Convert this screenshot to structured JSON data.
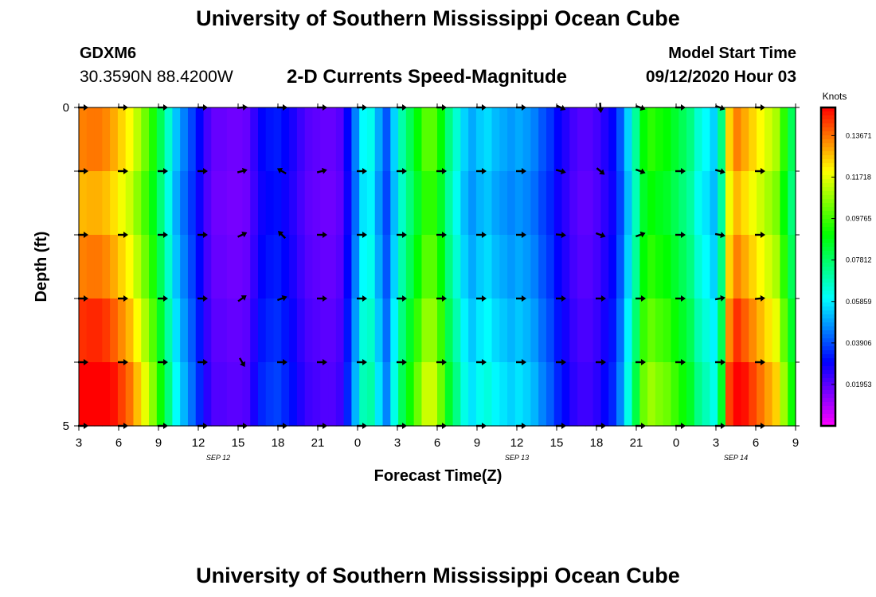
{
  "header": {
    "title": "University of Southern Mississippi Ocean Cube",
    "station_id": "GDXM6",
    "coordinates": "30.3590N 88.4200W",
    "subtitle": "2-D Currents Speed-Magnitude",
    "start_label": "Model Start Time",
    "start_value": "09/12/2020 Hour 03"
  },
  "footer": {
    "title": "University of Southern Mississippi Ocean Cube"
  },
  "chart_data": {
    "type": "heatmap",
    "title": "2-D Currents Speed-Magnitude",
    "xlabel": "Forecast Time(Z)",
    "ylabel": "Depth (ft)",
    "x_tick_labels": [
      "3",
      "6",
      "9",
      "12",
      "15",
      "18",
      "21",
      "0",
      "3",
      "6",
      "9",
      "12",
      "15",
      "18",
      "21",
      "0",
      "3",
      "6",
      "9"
    ],
    "date_labels": [
      {
        "text": "SEP 12",
        "tick_index": 3.5
      },
      {
        "text": "SEP 13",
        "tick_index": 11
      },
      {
        "text": "SEP 14",
        "tick_index": 16.5
      }
    ],
    "y_tick_labels": [
      "0",
      "5"
    ],
    "ylim": [
      0,
      5
    ],
    "colorbar": {
      "title": "Knots",
      "tick_labels": [
        "0.13671",
        "0.11718",
        "0.09765",
        "0.07812",
        "0.05859",
        "0.03906",
        "0.01953"
      ],
      "tick_values": [
        0.13671,
        0.11718,
        0.09765,
        0.07812,
        0.05859,
        0.03906,
        0.01953
      ],
      "range": [
        0.0,
        0.15
      ]
    },
    "depth_rows": 5,
    "profile": [
      0.135,
      0.136,
      0.136,
      0.134,
      0.13,
      0.125,
      0.12,
      0.112,
      0.103,
      0.093,
      0.08,
      0.066,
      0.053,
      0.045,
      0.038,
      0.03,
      0.022,
      0.018,
      0.018,
      0.017,
      0.017,
      0.018,
      0.024,
      0.03,
      0.032,
      0.033,
      0.03,
      0.027,
      0.023,
      0.02,
      0.019,
      0.018,
      0.018,
      0.02,
      0.03,
      0.045,
      0.06,
      0.062,
      0.05,
      0.04,
      0.055,
      0.07,
      0.08,
      0.09,
      0.1,
      0.1,
      0.09,
      0.075,
      0.065,
      0.055,
      0.05,
      0.054,
      0.056,
      0.052,
      0.05,
      0.048,
      0.05,
      0.048,
      0.045,
      0.04,
      0.036,
      0.03,
      0.026,
      0.022,
      0.02,
      0.02,
      0.022,
      0.026,
      0.03,
      0.04,
      0.055,
      0.072,
      0.09,
      0.095,
      0.092,
      0.09,
      0.085,
      0.08,
      0.075,
      0.065,
      0.06,
      0.055,
      0.075,
      0.125,
      0.135,
      0.13,
      0.125,
      0.12,
      0.115,
      0.11,
      0.095,
      0.08
    ],
    "row_scale": [
      1.0,
      0.95,
      1.0,
      1.07,
      1.14
    ],
    "arrow_rows_depth": [
      0,
      1,
      2,
      3,
      4,
      5
    ],
    "arrow_columns_tick_index": [
      0,
      1,
      2,
      3,
      4,
      5,
      6,
      7,
      8,
      9,
      10,
      11,
      12,
      13,
      14,
      15,
      16,
      17
    ],
    "arrow_directions_deg": [
      [
        0,
        0,
        0,
        0,
        -5,
        0,
        0,
        0,
        0,
        0,
        0,
        0,
        25,
        85,
        20,
        0,
        20,
        0
      ],
      [
        0,
        0,
        0,
        0,
        -15,
        -150,
        -15,
        0,
        0,
        0,
        0,
        0,
        15,
        40,
        20,
        0,
        15,
        0
      ],
      [
        0,
        0,
        0,
        0,
        -25,
        -135,
        0,
        0,
        0,
        0,
        0,
        0,
        5,
        20,
        -20,
        0,
        10,
        0
      ],
      [
        0,
        0,
        0,
        0,
        -35,
        -20,
        0,
        0,
        0,
        0,
        0,
        0,
        0,
        0,
        0,
        0,
        -10,
        -5
      ],
      [
        0,
        0,
        0,
        0,
        60,
        0,
        0,
        0,
        0,
        0,
        0,
        0,
        0,
        0,
        0,
        0,
        0,
        0
      ],
      [
        0,
        0,
        0,
        0,
        0,
        0,
        0,
        0,
        0,
        0,
        0,
        0,
        0,
        0,
        0,
        0,
        0,
        0
      ]
    ]
  }
}
